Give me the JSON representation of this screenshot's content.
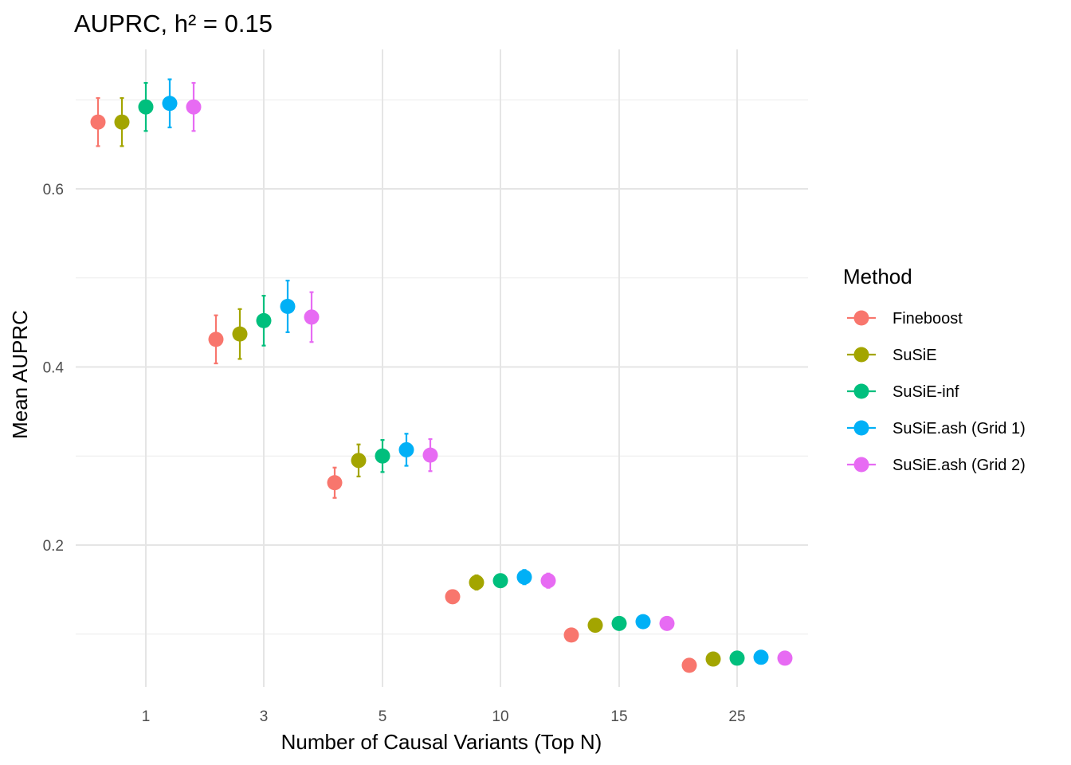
{
  "chart_data": {
    "type": "scatter",
    "title": "AUPRC, h² = 0.15",
    "xlabel": "Number of Causal Variants (Top N)",
    "ylabel": "Mean AUPRC",
    "categories": [
      "1",
      "3",
      "5",
      "10",
      "15",
      "25"
    ],
    "yticks": [
      0.2,
      0.4,
      0.6
    ],
    "ytick_labels": [
      "0.2",
      "0.4",
      "0.6"
    ],
    "ylim": [
      0.04,
      0.75
    ],
    "grid": true,
    "legend": {
      "title": "Method",
      "position": "right"
    },
    "series": [
      {
        "name": "Fineboost",
        "color": "#F8766D",
        "values": [
          0.675,
          0.431,
          0.27,
          0.142,
          0.099,
          0.065
        ],
        "lower": [
          0.648,
          0.404,
          0.253,
          null,
          null,
          null
        ],
        "upper": [
          0.702,
          0.458,
          0.287,
          null,
          null,
          null
        ]
      },
      {
        "name": "SuSiE",
        "color": "#A3A500",
        "values": [
          0.675,
          0.437,
          0.295,
          0.158,
          0.11,
          0.072
        ],
        "lower": [
          0.648,
          0.409,
          0.277,
          0.15,
          null,
          null
        ],
        "upper": [
          0.702,
          0.465,
          0.313,
          0.166,
          null,
          null
        ]
      },
      {
        "name": "SuSiE-inf",
        "color": "#00BF7D",
        "values": [
          0.692,
          0.452,
          0.3,
          0.16,
          0.112,
          0.073
        ],
        "lower": [
          0.665,
          0.424,
          0.282,
          0.153,
          null,
          null
        ],
        "upper": [
          0.719,
          0.48,
          0.318,
          0.167,
          null,
          null
        ]
      },
      {
        "name": "SuSiE.ash (Grid 1)",
        "color": "#00B0F6",
        "values": [
          0.696,
          0.468,
          0.307,
          0.164,
          0.114,
          0.074
        ],
        "lower": [
          0.669,
          0.439,
          0.289,
          0.156,
          null,
          null
        ],
        "upper": [
          0.723,
          0.497,
          0.325,
          0.172,
          null,
          null
        ]
      },
      {
        "name": "SuSiE.ash (Grid 2)",
        "color": "#E76BF3",
        "values": [
          0.692,
          0.456,
          0.301,
          0.16,
          0.112,
          0.073
        ],
        "lower": [
          0.665,
          0.428,
          0.283,
          0.152,
          null,
          null
        ],
        "upper": [
          0.719,
          0.484,
          0.319,
          0.168,
          null,
          null
        ]
      }
    ]
  }
}
